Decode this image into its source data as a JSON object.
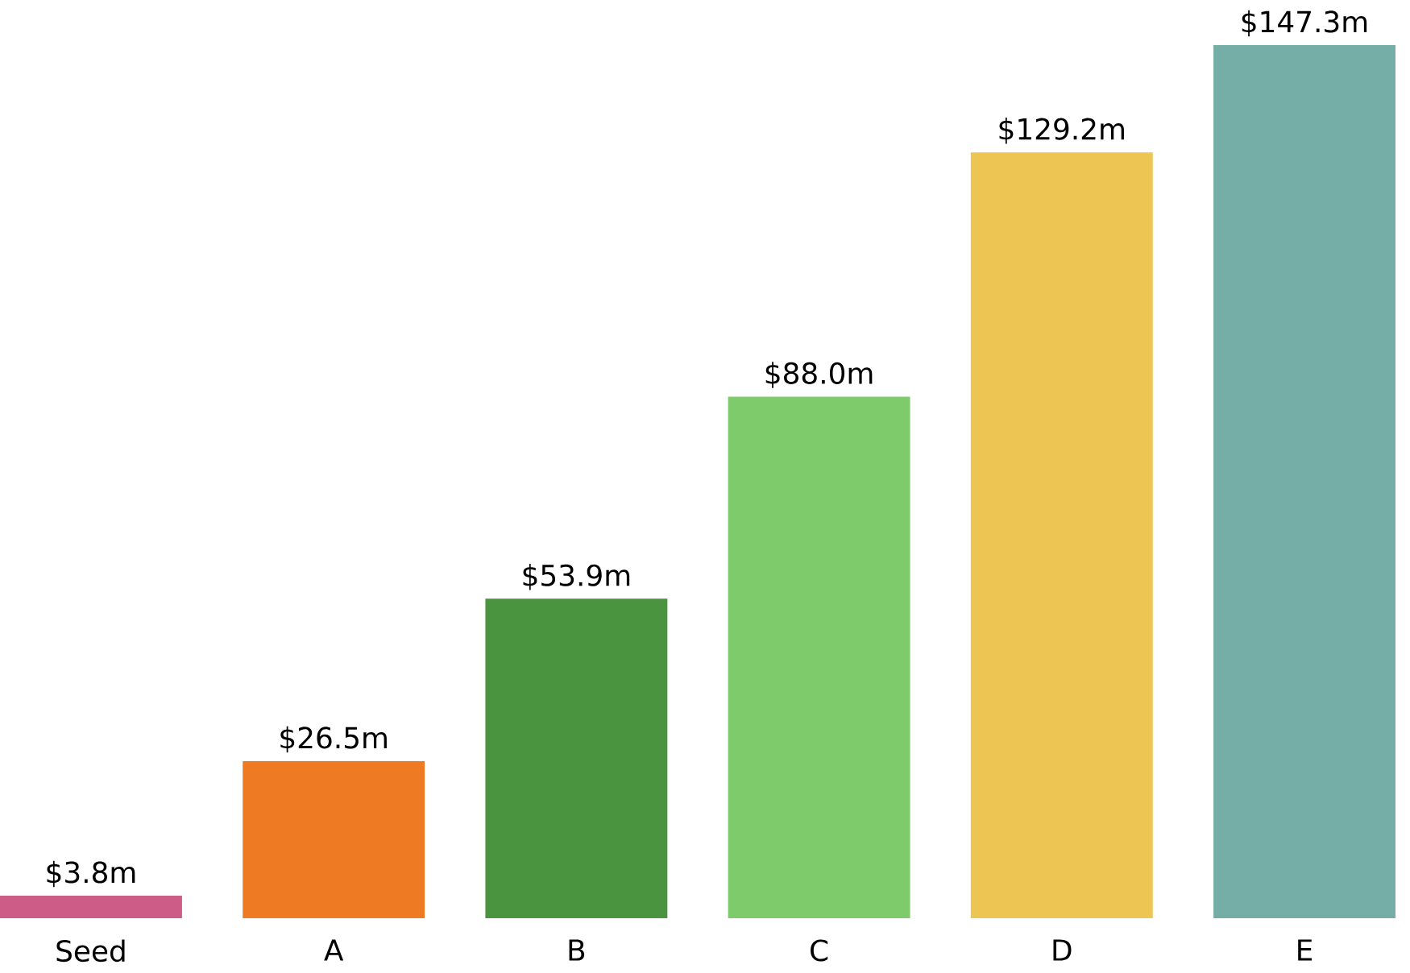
{
  "chart_data": {
    "type": "bar",
    "categories": [
      "Seed",
      "A",
      "B",
      "C",
      "D",
      "E"
    ],
    "values": [
      3.8,
      26.5,
      53.9,
      88.0,
      129.2,
      147.3
    ],
    "colors": [
      "#cd5c87",
      "#ee7b24",
      "#4a943f",
      "#7dcb6a",
      "#ecc552",
      "#75aea7"
    ],
    "value_labels": [
      "$3.8m",
      "$26.5m",
      "$53.9m",
      "$88.0m",
      "$129.2m",
      "$147.3m"
    ]
  }
}
